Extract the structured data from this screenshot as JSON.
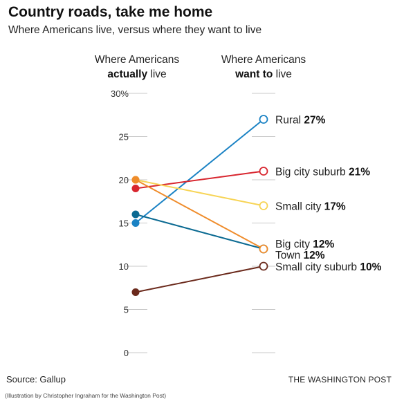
{
  "title": "Country roads, take me home",
  "subtitle": "Where Americans live, versus where they want to live",
  "columns": {
    "left": {
      "line1": "Where Americans",
      "line2_bold": "actually",
      "line2_rest": " live"
    },
    "right": {
      "line1": "Where Americans",
      "line2_bold": "want to",
      "line2_rest": " live"
    }
  },
  "footer": {
    "source": "Source: Gallup",
    "publisher": "THE WASHINGTON POST",
    "credit": "(Illustration by Christopher Ingraham for the Washington Post)"
  },
  "chart_data": {
    "type": "line",
    "x": [
      "Where Americans actually live",
      "Where Americans want to live"
    ],
    "ylim": [
      0,
      30
    ],
    "yticks": [
      0,
      5,
      10,
      15,
      20,
      25,
      30
    ],
    "ytick_labels": [
      "0",
      "5",
      "10",
      "15",
      "20",
      "25",
      "30%"
    ],
    "grid": false,
    "series": [
      {
        "name": "Rural",
        "values": [
          15,
          27
        ],
        "color": "#1a82c4",
        "label": "Rural",
        "value_label": "27%"
      },
      {
        "name": "Big city suburb",
        "values": [
          19,
          21
        ],
        "color": "#d8262f",
        "label": "Big city suburb",
        "value_label": "21%"
      },
      {
        "name": "Small city",
        "values": [
          20,
          17
        ],
        "color": "#f7d455",
        "label": "Small city",
        "value_label": "17%"
      },
      {
        "name": "Big city",
        "values": [
          16,
          12
        ],
        "color": "#0b6a92",
        "label": "Big city",
        "value_label": "12%"
      },
      {
        "name": "Town",
        "values": [
          20,
          12
        ],
        "color": "#ef8c2b",
        "label": "Town",
        "value_label": "12%"
      },
      {
        "name": "Small city suburb",
        "values": [
          7,
          10
        ],
        "color": "#6b2a1c",
        "label": "Small city suburb",
        "value_label": "10%"
      }
    ]
  }
}
